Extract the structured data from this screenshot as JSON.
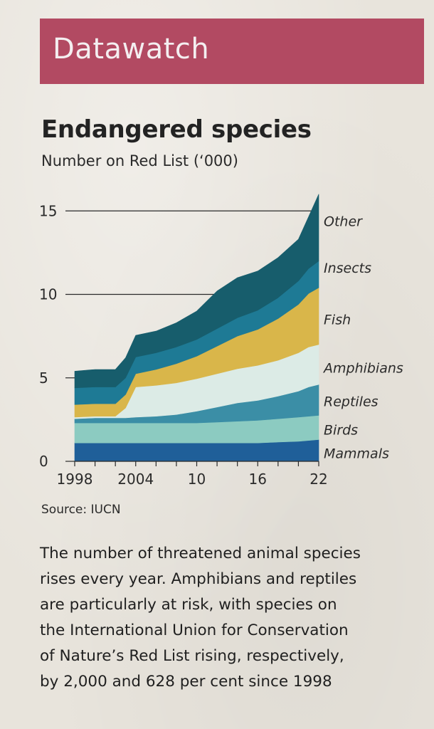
{
  "banner": {
    "title": "Datawatch",
    "color": "#b24a62"
  },
  "header": {
    "title": "Endangered species",
    "subtitle": "Number on Red List (‘000)"
  },
  "source": "Source: IUCN",
  "body_lines": [
    "The number of threatened animal species",
    "rises every year. Amphibians and reptiles",
    "are particularly at risk, with species on",
    "the International Union for Conservation",
    "of Nature’s Red List rising, respectively,",
    "by 2,000 and 628 per cent since 1998"
  ],
  "chart_data": {
    "type": "area",
    "stacked": true,
    "title": "Endangered species",
    "subtitle": "Number on Red List ('000)",
    "xlabel": "",
    "ylabel": "",
    "x": [
      1998,
      2000,
      2002,
      2003,
      2004,
      2006,
      2008,
      2010,
      2012,
      2014,
      2016,
      2018,
      2020,
      2021,
      2022
    ],
    "x_ticks": [
      1998,
      2004,
      2010,
      2016,
      2022
    ],
    "x_tick_labels": [
      "1998",
      "2004",
      "10",
      "16",
      "22"
    ],
    "x_minor_ticks_every": 2,
    "y_ticks": [
      0,
      5,
      10,
      15
    ],
    "ylim": [
      0,
      16.5
    ],
    "xlim": [
      1998,
      2022
    ],
    "gridlines": [
      10,
      15
    ],
    "series": [
      {
        "name": "Mammals",
        "color": "#1f5f99",
        "values": [
          1.1,
          1.1,
          1.1,
          1.1,
          1.1,
          1.1,
          1.1,
          1.1,
          1.1,
          1.1,
          1.1,
          1.15,
          1.2,
          1.25,
          1.3
        ]
      },
      {
        "name": "Birds",
        "color": "#8ccbc1",
        "values": [
          1.2,
          1.2,
          1.2,
          1.2,
          1.2,
          1.2,
          1.2,
          1.2,
          1.25,
          1.3,
          1.35,
          1.4,
          1.45,
          1.45,
          1.45
        ]
      },
      {
        "name": "Reptiles",
        "color": "#3b8ea6",
        "values": [
          0.25,
          0.3,
          0.3,
          0.3,
          0.35,
          0.4,
          0.5,
          0.7,
          0.9,
          1.1,
          1.2,
          1.35,
          1.55,
          1.75,
          1.85
        ]
      },
      {
        "name": "Amphibians",
        "color": "#dcebe6",
        "values": [
          0.1,
          0.1,
          0.1,
          0.6,
          1.8,
          1.85,
          1.9,
          1.95,
          2.0,
          2.05,
          2.1,
          2.15,
          2.3,
          2.4,
          2.4
        ]
      },
      {
        "name": "Fish",
        "color": "#d9b64a",
        "values": [
          0.75,
          0.75,
          0.75,
          0.8,
          0.8,
          0.95,
          1.15,
          1.35,
          1.65,
          1.95,
          2.15,
          2.5,
          2.9,
          3.2,
          3.4
        ]
      },
      {
        "name": "Insects",
        "color": "#1e7a95",
        "values": [
          1.0,
          1.0,
          1.0,
          1.0,
          1.0,
          1.0,
          1.0,
          1.0,
          1.05,
          1.1,
          1.15,
          1.25,
          1.4,
          1.5,
          1.6
        ]
      },
      {
        "name": "Other",
        "color": "#175d6c",
        "values": [
          1.0,
          1.05,
          1.05,
          1.2,
          1.3,
          1.3,
          1.45,
          1.7,
          2.25,
          2.4,
          2.35,
          2.4,
          2.5,
          3.1,
          4.0
        ]
      }
    ],
    "legend": "direct-labels-right"
  }
}
